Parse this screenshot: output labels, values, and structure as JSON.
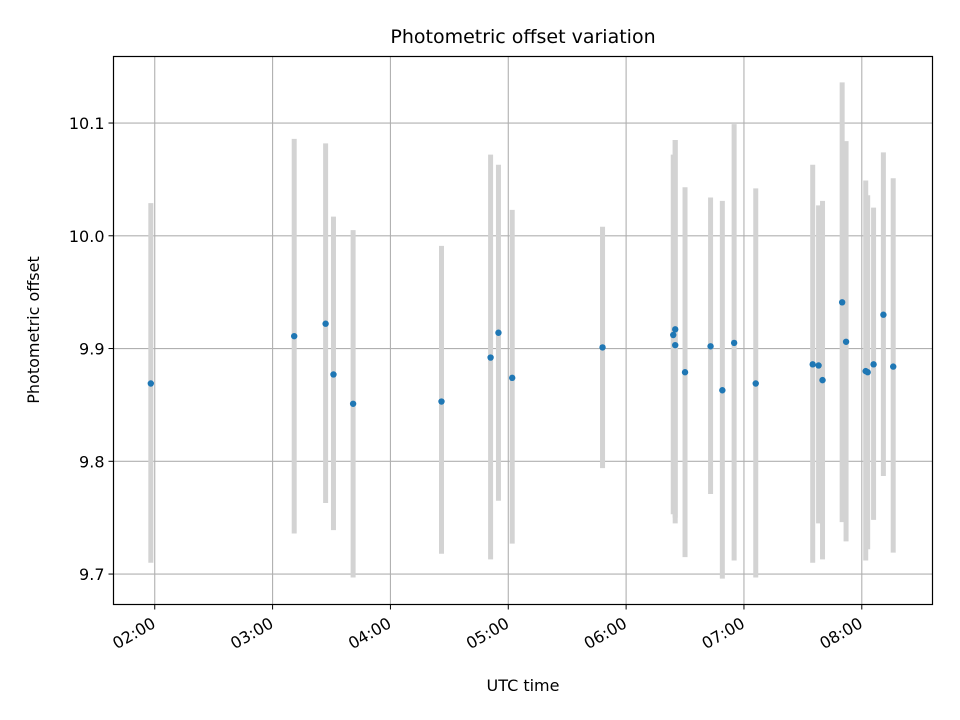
{
  "chart_data": {
    "type": "scatter",
    "title": "Photometric offset variation",
    "xlabel": "UTC time",
    "ylabel": "Photometric offset",
    "x_axis_type": "time",
    "xlim": [
      "01:39",
      "08:36"
    ],
    "ylim": [
      9.673,
      10.159
    ],
    "x_ticks": [
      "02:00",
      "03:00",
      "04:00",
      "05:00",
      "06:00",
      "07:00",
      "08:00"
    ],
    "y_ticks": [
      9.7,
      9.8,
      9.9,
      10.0,
      10.1
    ],
    "y_tick_labels": [
      "9.7",
      "9.8",
      "9.9",
      "10.0",
      "10.1"
    ],
    "grid": true,
    "legend": "none",
    "colors": {
      "point": "#1f77b4",
      "errorbar": "#d3d3d3",
      "grid": "#b0b0b0",
      "axes": "#000000"
    },
    "points": [
      {
        "time": "01:58",
        "y": 9.869,
        "ylow": 9.71,
        "yhigh": 10.029
      },
      {
        "time": "03:11",
        "y": 9.911,
        "ylow": 9.736,
        "yhigh": 10.086
      },
      {
        "time": "03:27",
        "y": 9.922,
        "ylow": 9.763,
        "yhigh": 10.082
      },
      {
        "time": "03:31",
        "y": 9.877,
        "ylow": 9.739,
        "yhigh": 10.017
      },
      {
        "time": "03:41",
        "y": 9.851,
        "ylow": 9.697,
        "yhigh": 10.005
      },
      {
        "time": "04:26",
        "y": 9.853,
        "ylow": 9.718,
        "yhigh": 9.991
      },
      {
        "time": "04:51",
        "y": 9.892,
        "ylow": 9.713,
        "yhigh": 10.072
      },
      {
        "time": "04:55",
        "y": 9.914,
        "ylow": 9.765,
        "yhigh": 10.063
      },
      {
        "time": "05:02",
        "y": 9.874,
        "ylow": 9.727,
        "yhigh": 10.023
      },
      {
        "time": "05:48",
        "y": 9.901,
        "ylow": 9.794,
        "yhigh": 10.008
      },
      {
        "time": "06:24",
        "y": 9.912,
        "ylow": 9.753,
        "yhigh": 10.072
      },
      {
        "time": "06:25",
        "y": 9.903,
        "ylow": 9.745,
        "yhigh": 10.085
      },
      {
        "time": "06:25",
        "y": 9.917,
        "ylow": 9.75,
        "yhigh": 10.085
      },
      {
        "time": "06:30",
        "y": 9.879,
        "ylow": 9.715,
        "yhigh": 10.043
      },
      {
        "time": "06:43",
        "y": 9.902,
        "ylow": 9.771,
        "yhigh": 10.034
      },
      {
        "time": "06:49",
        "y": 9.863,
        "ylow": 9.696,
        "yhigh": 10.031
      },
      {
        "time": "06:55",
        "y": 9.905,
        "ylow": 9.712,
        "yhigh": 10.099
      },
      {
        "time": "07:06",
        "y": 9.869,
        "ylow": 9.697,
        "yhigh": 10.042
      },
      {
        "time": "07:35",
        "y": 9.886,
        "ylow": 9.71,
        "yhigh": 10.063
      },
      {
        "time": "07:38",
        "y": 9.885,
        "ylow": 9.745,
        "yhigh": 10.027
      },
      {
        "time": "07:40",
        "y": 9.872,
        "ylow": 9.713,
        "yhigh": 10.031
      },
      {
        "time": "07:50",
        "y": 9.941,
        "ylow": 9.746,
        "yhigh": 10.136
      },
      {
        "time": "07:52",
        "y": 9.906,
        "ylow": 9.729,
        "yhigh": 10.084
      },
      {
        "time": "08:02",
        "y": 9.88,
        "ylow": 9.712,
        "yhigh": 10.049
      },
      {
        "time": "08:03",
        "y": 9.879,
        "ylow": 9.722,
        "yhigh": 10.036
      },
      {
        "time": "08:06",
        "y": 9.886,
        "ylow": 9.748,
        "yhigh": 10.025
      },
      {
        "time": "08:11",
        "y": 9.93,
        "ylow": 9.787,
        "yhigh": 10.074
      },
      {
        "time": "08:16",
        "y": 9.884,
        "ylow": 9.719,
        "yhigh": 10.051
      }
    ]
  }
}
